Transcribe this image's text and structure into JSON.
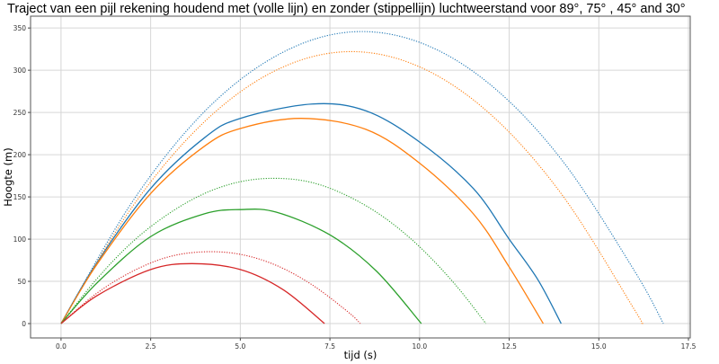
{
  "chart_data": {
    "type": "line",
    "title": "Traject van een pijl rekening houdend met (volle lijn) en zonder (stippellijn) luchtweerstand voor 89°, 75° , 45° and 30°",
    "xlabel": "tijd (s)",
    "ylabel": "Hoogte (m)",
    "xlim": [
      -0.85,
      17.55
    ],
    "ylim": [
      -17,
      364
    ],
    "xticks": [
      "0.0",
      "2.5",
      "5.0",
      "7.5",
      "10.0",
      "12.5",
      "15.0",
      "17.5"
    ],
    "yticks": [
      "0",
      "50",
      "100",
      "150",
      "200",
      "250",
      "300",
      "350"
    ],
    "grid": true,
    "series": [
      {
        "color": "#1f77b4",
        "style": "solid",
        "points": [
          [
            0,
            0
          ],
          [
            1,
            72
          ],
          [
            2.5,
            160
          ],
          [
            4,
            220
          ],
          [
            5,
            243
          ],
          [
            7,
            260
          ],
          [
            8.5,
            252
          ],
          [
            10,
            215
          ],
          [
            11.5,
            160
          ],
          [
            12.5,
            100
          ],
          [
            13.3,
            52
          ],
          [
            13.95,
            0
          ]
        ]
      },
      {
        "color": "#ff7f0e",
        "style": "solid",
        "points": [
          [
            0,
            0
          ],
          [
            1,
            70
          ],
          [
            2.5,
            154
          ],
          [
            4,
            210
          ],
          [
            5,
            231
          ],
          [
            6.7,
            243
          ],
          [
            8.5,
            230
          ],
          [
            10,
            190
          ],
          [
            11.5,
            130
          ],
          [
            12.5,
            67
          ],
          [
            13.45,
            0
          ]
        ]
      },
      {
        "color": "#2ca02c",
        "style": "solid",
        "points": [
          [
            0,
            0
          ],
          [
            1,
            48
          ],
          [
            2.5,
            103
          ],
          [
            4,
            130
          ],
          [
            5,
            135
          ],
          [
            6,
            132
          ],
          [
            7.5,
            105
          ],
          [
            8.8,
            62
          ],
          [
            10.05,
            0
          ]
        ]
      },
      {
        "color": "#d62728",
        "style": "solid",
        "points": [
          [
            0,
            0
          ],
          [
            1,
            33
          ],
          [
            2.5,
            64
          ],
          [
            3.65,
            71
          ],
          [
            5,
            64
          ],
          [
            6.2,
            40
          ],
          [
            7.35,
            0
          ]
        ]
      },
      {
        "color": "#1f77b4",
        "style": "dotted",
        "points": [
          [
            0,
            0
          ],
          [
            2,
            145
          ],
          [
            4,
            251
          ],
          [
            6,
            317
          ],
          [
            8,
            345
          ],
          [
            10,
            333
          ],
          [
            12,
            282
          ],
          [
            14,
            192
          ],
          [
            16,
            62
          ],
          [
            16.8,
            0
          ]
        ]
      },
      {
        "color": "#ff7f0e",
        "style": "dotted",
        "points": [
          [
            0,
            0
          ],
          [
            2,
            139
          ],
          [
            4,
            239
          ],
          [
            6,
            300
          ],
          [
            8,
            322
          ],
          [
            10,
            304
          ],
          [
            12,
            247
          ],
          [
            14,
            151
          ],
          [
            16,
            16
          ],
          [
            16.2,
            0
          ]
        ]
      },
      {
        "color": "#2ca02c",
        "style": "dotted",
        "points": [
          [
            0,
            0
          ],
          [
            1,
            53
          ],
          [
            2,
            97
          ],
          [
            3,
            130
          ],
          [
            4,
            154
          ],
          [
            5,
            168
          ],
          [
            6,
            172
          ],
          [
            7,
            167
          ],
          [
            8,
            151
          ],
          [
            9,
            126
          ],
          [
            10,
            91
          ],
          [
            11,
            46
          ],
          [
            11.85,
            0
          ]
        ]
      },
      {
        "color": "#d62728",
        "style": "dotted",
        "points": [
          [
            0,
            0
          ],
          [
            1,
            36
          ],
          [
            2,
            62
          ],
          [
            3,
            79
          ],
          [
            4,
            85
          ],
          [
            5,
            82
          ],
          [
            6,
            69
          ],
          [
            7,
            46
          ],
          [
            8,
            14
          ],
          [
            8.35,
            0
          ]
        ]
      }
    ]
  }
}
